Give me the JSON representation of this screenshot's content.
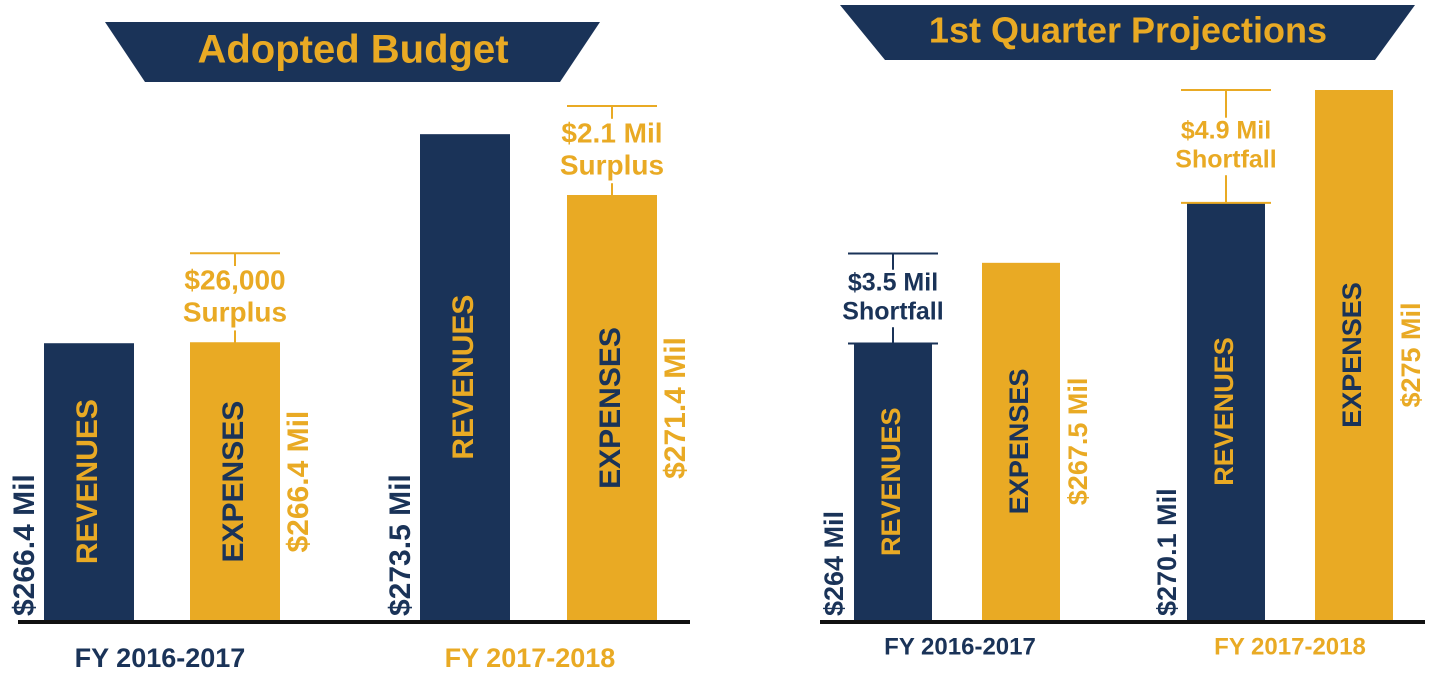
{
  "chart_data": [
    {
      "type": "bar",
      "title": "Adopted Budget",
      "categories": [
        "FY 2016-2017",
        "FY 2017-2018"
      ],
      "category_colors": [
        "#1a3358",
        "#e9aa24"
      ],
      "series": [
        {
          "name": "REVENUES",
          "color": "#1a3358",
          "values": [
            266.4,
            273.5
          ],
          "value_labels": [
            "$266.4 Mil",
            "$273.5 Mil"
          ]
        },
        {
          "name": "EXPENSES",
          "color": "#e9aa24",
          "values": [
            266.4,
            271.4
          ],
          "value_labels": [
            "$266.4 Mil",
            "$271.4 Mil"
          ]
        }
      ],
      "annotations": [
        [
          "$26,000",
          "Surplus"
        ],
        [
          "$2.1 Mil",
          "Surplus"
        ]
      ],
      "annotation_colors": [
        "#e9aa24",
        "#e9aa24"
      ],
      "ylim": [
        257,
        275
      ]
    },
    {
      "type": "bar",
      "title": "1st Quarter Projections",
      "categories": [
        "FY 2016-2017",
        "FY 2017-2018"
      ],
      "category_colors": [
        "#1a3358",
        "#e9aa24"
      ],
      "series": [
        {
          "name": "REVENUES",
          "color": "#1a3358",
          "values": [
            264,
            270.1
          ],
          "value_labels": [
            "$264 Mil",
            "$270.1 Mil"
          ]
        },
        {
          "name": "EXPENSES",
          "color": "#e9aa24",
          "values": [
            267.5,
            275
          ],
          "value_labels": [
            "$267.5 Mil",
            "$275 Mil"
          ]
        }
      ],
      "annotations": [
        [
          "$3.5 Mil",
          "Shortfall"
        ],
        [
          "$4.9 Mil",
          "Shortfall"
        ]
      ],
      "annotation_colors": [
        "#1a3358",
        "#e9aa24"
      ],
      "ylim": [
        252,
        275
      ]
    }
  ]
}
